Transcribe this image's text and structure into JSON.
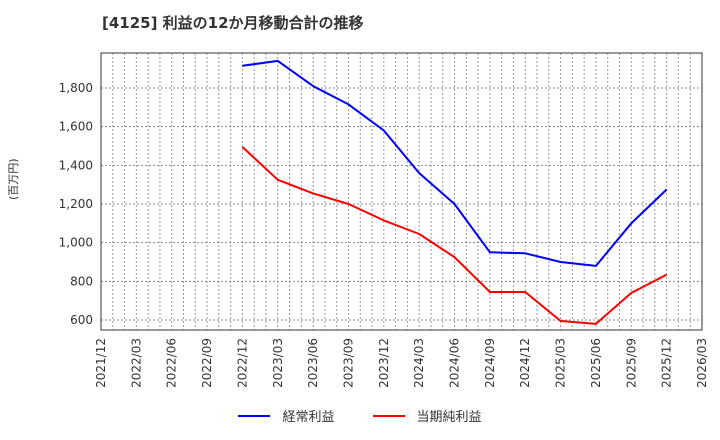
{
  "header": {
    "title": "[4125]  利益の12か月移動合計の推移"
  },
  "axes": {
    "y_unit_label": "(百万円)"
  },
  "legend": [
    {
      "label": "経常利益",
      "color": "#0000ff"
    },
    {
      "label": "当期純利益",
      "color": "#ff0000"
    }
  ],
  "chart_data": {
    "type": "line",
    "title": "[4125]  利益の12か月移動合計の推移",
    "xlabel": "",
    "ylabel": "(百万円)",
    "x_ticks": [
      "2021/12",
      "2022/03",
      "2022/06",
      "2022/09",
      "2022/12",
      "2023/03",
      "2023/06",
      "2023/09",
      "2023/12",
      "2024/03",
      "2024/06",
      "2024/09",
      "2024/12",
      "2025/03",
      "2025/06",
      "2025/09",
      "2025/12",
      "2026/03"
    ],
    "y_ticks": [
      600,
      800,
      1000,
      1200,
      1400,
      1600,
      1800
    ],
    "y_tick_labels": [
      "600",
      "800",
      "1,000",
      "1,200",
      "1,400",
      "1,600",
      "1,800"
    ],
    "ylim": [
      545,
      1975
    ],
    "grid": true,
    "legend_position": "bottom",
    "categories": [
      "2022/12",
      "2023/03",
      "2023/06",
      "2023/09",
      "2023/12",
      "2024/03",
      "2024/06",
      "2024/09",
      "2024/12",
      "2025/03",
      "2025/06",
      "2025/09",
      "2025/12"
    ],
    "series": [
      {
        "name": "経常利益",
        "color": "#0000ff",
        "values": [
          1915,
          1940,
          1810,
          1715,
          1580,
          1360,
          1200,
          950,
          945,
          900,
          880,
          1100,
          1275
        ]
      },
      {
        "name": "当期純利益",
        "color": "#ff0000",
        "values": [
          1495,
          1325,
          1255,
          1200,
          1115,
          1045,
          925,
          745,
          745,
          595,
          580,
          740,
          835
        ]
      }
    ]
  }
}
